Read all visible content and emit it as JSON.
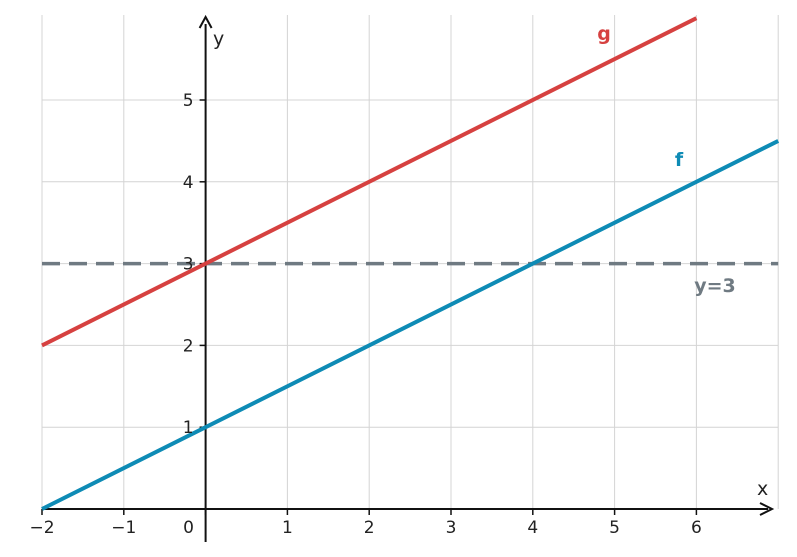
{
  "chart_data": {
    "type": "line",
    "xlabel": "x",
    "ylabel": "y",
    "xlim": [
      -2,
      7
    ],
    "ylim": [
      0,
      5.9
    ],
    "grid": true,
    "x_ticks": [
      -2,
      -1,
      0,
      1,
      2,
      3,
      4,
      5,
      6
    ],
    "x_tick_labels": [
      "−2",
      "−1",
      "0",
      "1",
      "2",
      "3",
      "4",
      "5",
      "6"
    ],
    "y_ticks": [
      1,
      2,
      3,
      4,
      5
    ],
    "y_tick_labels": [
      "1",
      "2",
      "3",
      "4",
      "5"
    ],
    "series": [
      {
        "name": "f",
        "x": [
          -2,
          7
        ],
        "y": [
          0,
          4.5
        ],
        "color": "#0e8bb5"
      },
      {
        "name": "g",
        "x": [
          -2,
          6
        ],
        "y": [
          2,
          6
        ],
        "color": "#d64140"
      },
      {
        "name": "y=3",
        "x": [
          -2,
          7
        ],
        "y": [
          3,
          3
        ],
        "color": "#6f7a82",
        "style": "dashed"
      }
    ]
  }
}
